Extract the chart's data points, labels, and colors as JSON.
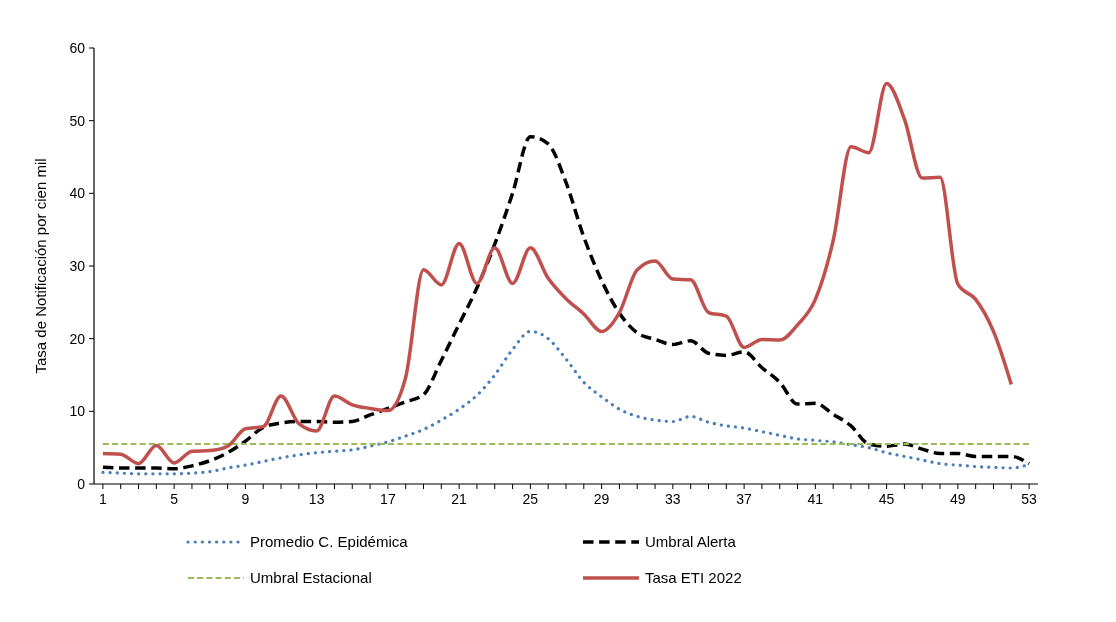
{
  "chart_data": {
    "type": "line",
    "ylabel": "Tasa de Notificación por cien mil",
    "xlim": [
      0.5,
      53.5
    ],
    "ylim": [
      0,
      60
    ],
    "yticks": [
      0,
      10,
      20,
      30,
      40,
      50,
      60
    ],
    "xticks": [
      1,
      {
        "value": 2,
        "label": null
      },
      {
        "value": 3,
        "label": null
      },
      {
        "value": 4,
        "label": null
      },
      5,
      {
        "value": 6,
        "label": null
      },
      {
        "value": 7,
        "label": null
      },
      {
        "value": 8,
        "label": null
      },
      9,
      {
        "value": 10,
        "label": null
      },
      {
        "value": 11,
        "label": null
      },
      {
        "value": 12,
        "label": null
      },
      13,
      {
        "value": 14,
        "label": null
      },
      {
        "value": 15,
        "label": null
      },
      {
        "value": 16,
        "label": null
      },
      17,
      {
        "value": 18,
        "label": null
      },
      {
        "value": 19,
        "label": null
      },
      {
        "value": 20,
        "label": null
      },
      21,
      {
        "value": 22,
        "label": null
      },
      {
        "value": 23,
        "label": null
      },
      {
        "value": 24,
        "label": null
      },
      25,
      {
        "value": 26,
        "label": null
      },
      {
        "value": 27,
        "label": null
      },
      {
        "value": 28,
        "label": null
      },
      29,
      {
        "value": 30,
        "label": null
      },
      {
        "value": 31,
        "label": null
      },
      {
        "value": 32,
        "label": null
      },
      33,
      {
        "value": 34,
        "label": null
      },
      {
        "value": 35,
        "label": null
      },
      {
        "value": 36,
        "label": null
      },
      37,
      {
        "value": 38,
        "label": null
      },
      {
        "value": 39,
        "label": null
      },
      {
        "value": 40,
        "label": null
      },
      41,
      {
        "value": 42,
        "label": null
      },
      {
        "value": 43,
        "label": null
      },
      {
        "value": 44,
        "label": null
      },
      45,
      {
        "value": 46,
        "label": null
      },
      {
        "value": 47,
        "label": null
      },
      {
        "value": 48,
        "label": null
      },
      49,
      {
        "value": 50,
        "label": null
      },
      {
        "value": 51,
        "label": null
      },
      {
        "value": 52,
        "label": null
      },
      53
    ],
    "grid": false,
    "legend": "bottom",
    "marker": "none",
    "series": [
      {
        "name": "Promedio  C. Epidémica",
        "color": "#4a7ebb",
        "line_style": "dotted",
        "x": [
          1,
          2,
          3,
          4,
          5,
          6,
          7,
          8,
          9,
          10,
          11,
          12,
          13,
          14,
          15,
          16,
          17,
          18,
          19,
          20,
          21,
          22,
          23,
          24,
          25,
          26,
          27,
          28,
          29,
          30,
          31,
          32,
          33,
          34,
          35,
          36,
          37,
          38,
          39,
          40,
          41,
          42,
          43,
          44,
          45,
          46,
          47,
          48,
          49,
          50,
          51,
          52,
          53
        ],
        "values": [
          1.6,
          1.5,
          1.4,
          1.4,
          1.4,
          1.5,
          1.7,
          2.2,
          2.6,
          3.1,
          3.6,
          4.0,
          4.3,
          4.5,
          4.7,
          5.2,
          5.8,
          6.6,
          7.5,
          8.8,
          10.3,
          12.2,
          15,
          18.5,
          21,
          20,
          17.2,
          14,
          12,
          10.3,
          9.3,
          8.8,
          8.6,
          9.3,
          8.5,
          8.0,
          7.7,
          7.2,
          6.7,
          6.2,
          6.0,
          5.8,
          5.4,
          5.0,
          4.3,
          3.8,
          3.3,
          2.8,
          2.6,
          2.4,
          2.3,
          2.2,
          2.7
        ]
      },
      {
        "name": "Umbral Alerta",
        "color": "#000000",
        "line_style": "dashed",
        "x": [
          1,
          2,
          3,
          4,
          5,
          6,
          7,
          8,
          9,
          10,
          11,
          12,
          13,
          14,
          15,
          16,
          17,
          18,
          19,
          20,
          21,
          22,
          23,
          24,
          25,
          26,
          27,
          28,
          29,
          30,
          31,
          32,
          33,
          34,
          35,
          36,
          37,
          38,
          39,
          40,
          41,
          42,
          43,
          44,
          45,
          46,
          47,
          48,
          49,
          50,
          51,
          52,
          53
        ],
        "values": [
          2.3,
          2.2,
          2.2,
          2.2,
          2.1,
          2.5,
          3.2,
          4.3,
          5.9,
          7.8,
          8.4,
          8.6,
          8.6,
          8.5,
          8.6,
          9.5,
          10.4,
          11.3,
          12.3,
          17,
          22,
          27,
          33,
          40,
          47.8,
          46.8,
          41.5,
          34,
          28,
          23.5,
          20.8,
          19.9,
          19.2,
          19.7,
          18,
          17.7,
          18.2,
          16,
          14,
          11,
          11.1,
          9.6,
          8,
          5.5,
          5.2,
          5.5,
          4.8,
          4.2,
          4.2,
          3.8,
          3.8,
          3.8,
          2.8
        ]
      },
      {
        "name": "Umbral Estacional",
        "color": "#9bbb59",
        "line_style": "dashed",
        "x": [
          1,
          53
        ],
        "values": [
          5.5,
          5.5
        ]
      },
      {
        "name": "Tasa ETI  2022",
        "color": "#c0504d",
        "line_style": "solid",
        "x": [
          1,
          2,
          3,
          4,
          5,
          6,
          7,
          8,
          9,
          10,
          11,
          12,
          13,
          14,
          15,
          16,
          17,
          18,
          19,
          20,
          21,
          22,
          23,
          24,
          25,
          26,
          27,
          28,
          29,
          30,
          31,
          32,
          33,
          34,
          35,
          36,
          37,
          38,
          39,
          40,
          41,
          42,
          43,
          44,
          45,
          46,
          47,
          48,
          49,
          50,
          51,
          52
        ],
        "values": [
          4.2,
          4.1,
          2.8,
          5.3,
          2.9,
          4.5,
          4.6,
          5.2,
          7.6,
          7.9,
          12.1,
          8.3,
          7.3,
          12.1,
          10.9,
          10.4,
          10.1,
          14.7,
          29.5,
          27.4,
          33.1,
          27.6,
          32.5,
          27.6,
          32.5,
          28.3,
          25.5,
          23.4,
          21.0,
          23.6,
          29.5,
          30.7,
          28.2,
          28.1,
          23.6,
          23.1,
          18.8,
          19.9,
          19.8,
          21.9,
          25.4,
          33.5,
          46.4,
          45.6,
          55.1,
          50.2,
          42.1,
          42.2,
          27.5,
          25.4,
          21.0,
          13.7
        ]
      }
    ]
  }
}
